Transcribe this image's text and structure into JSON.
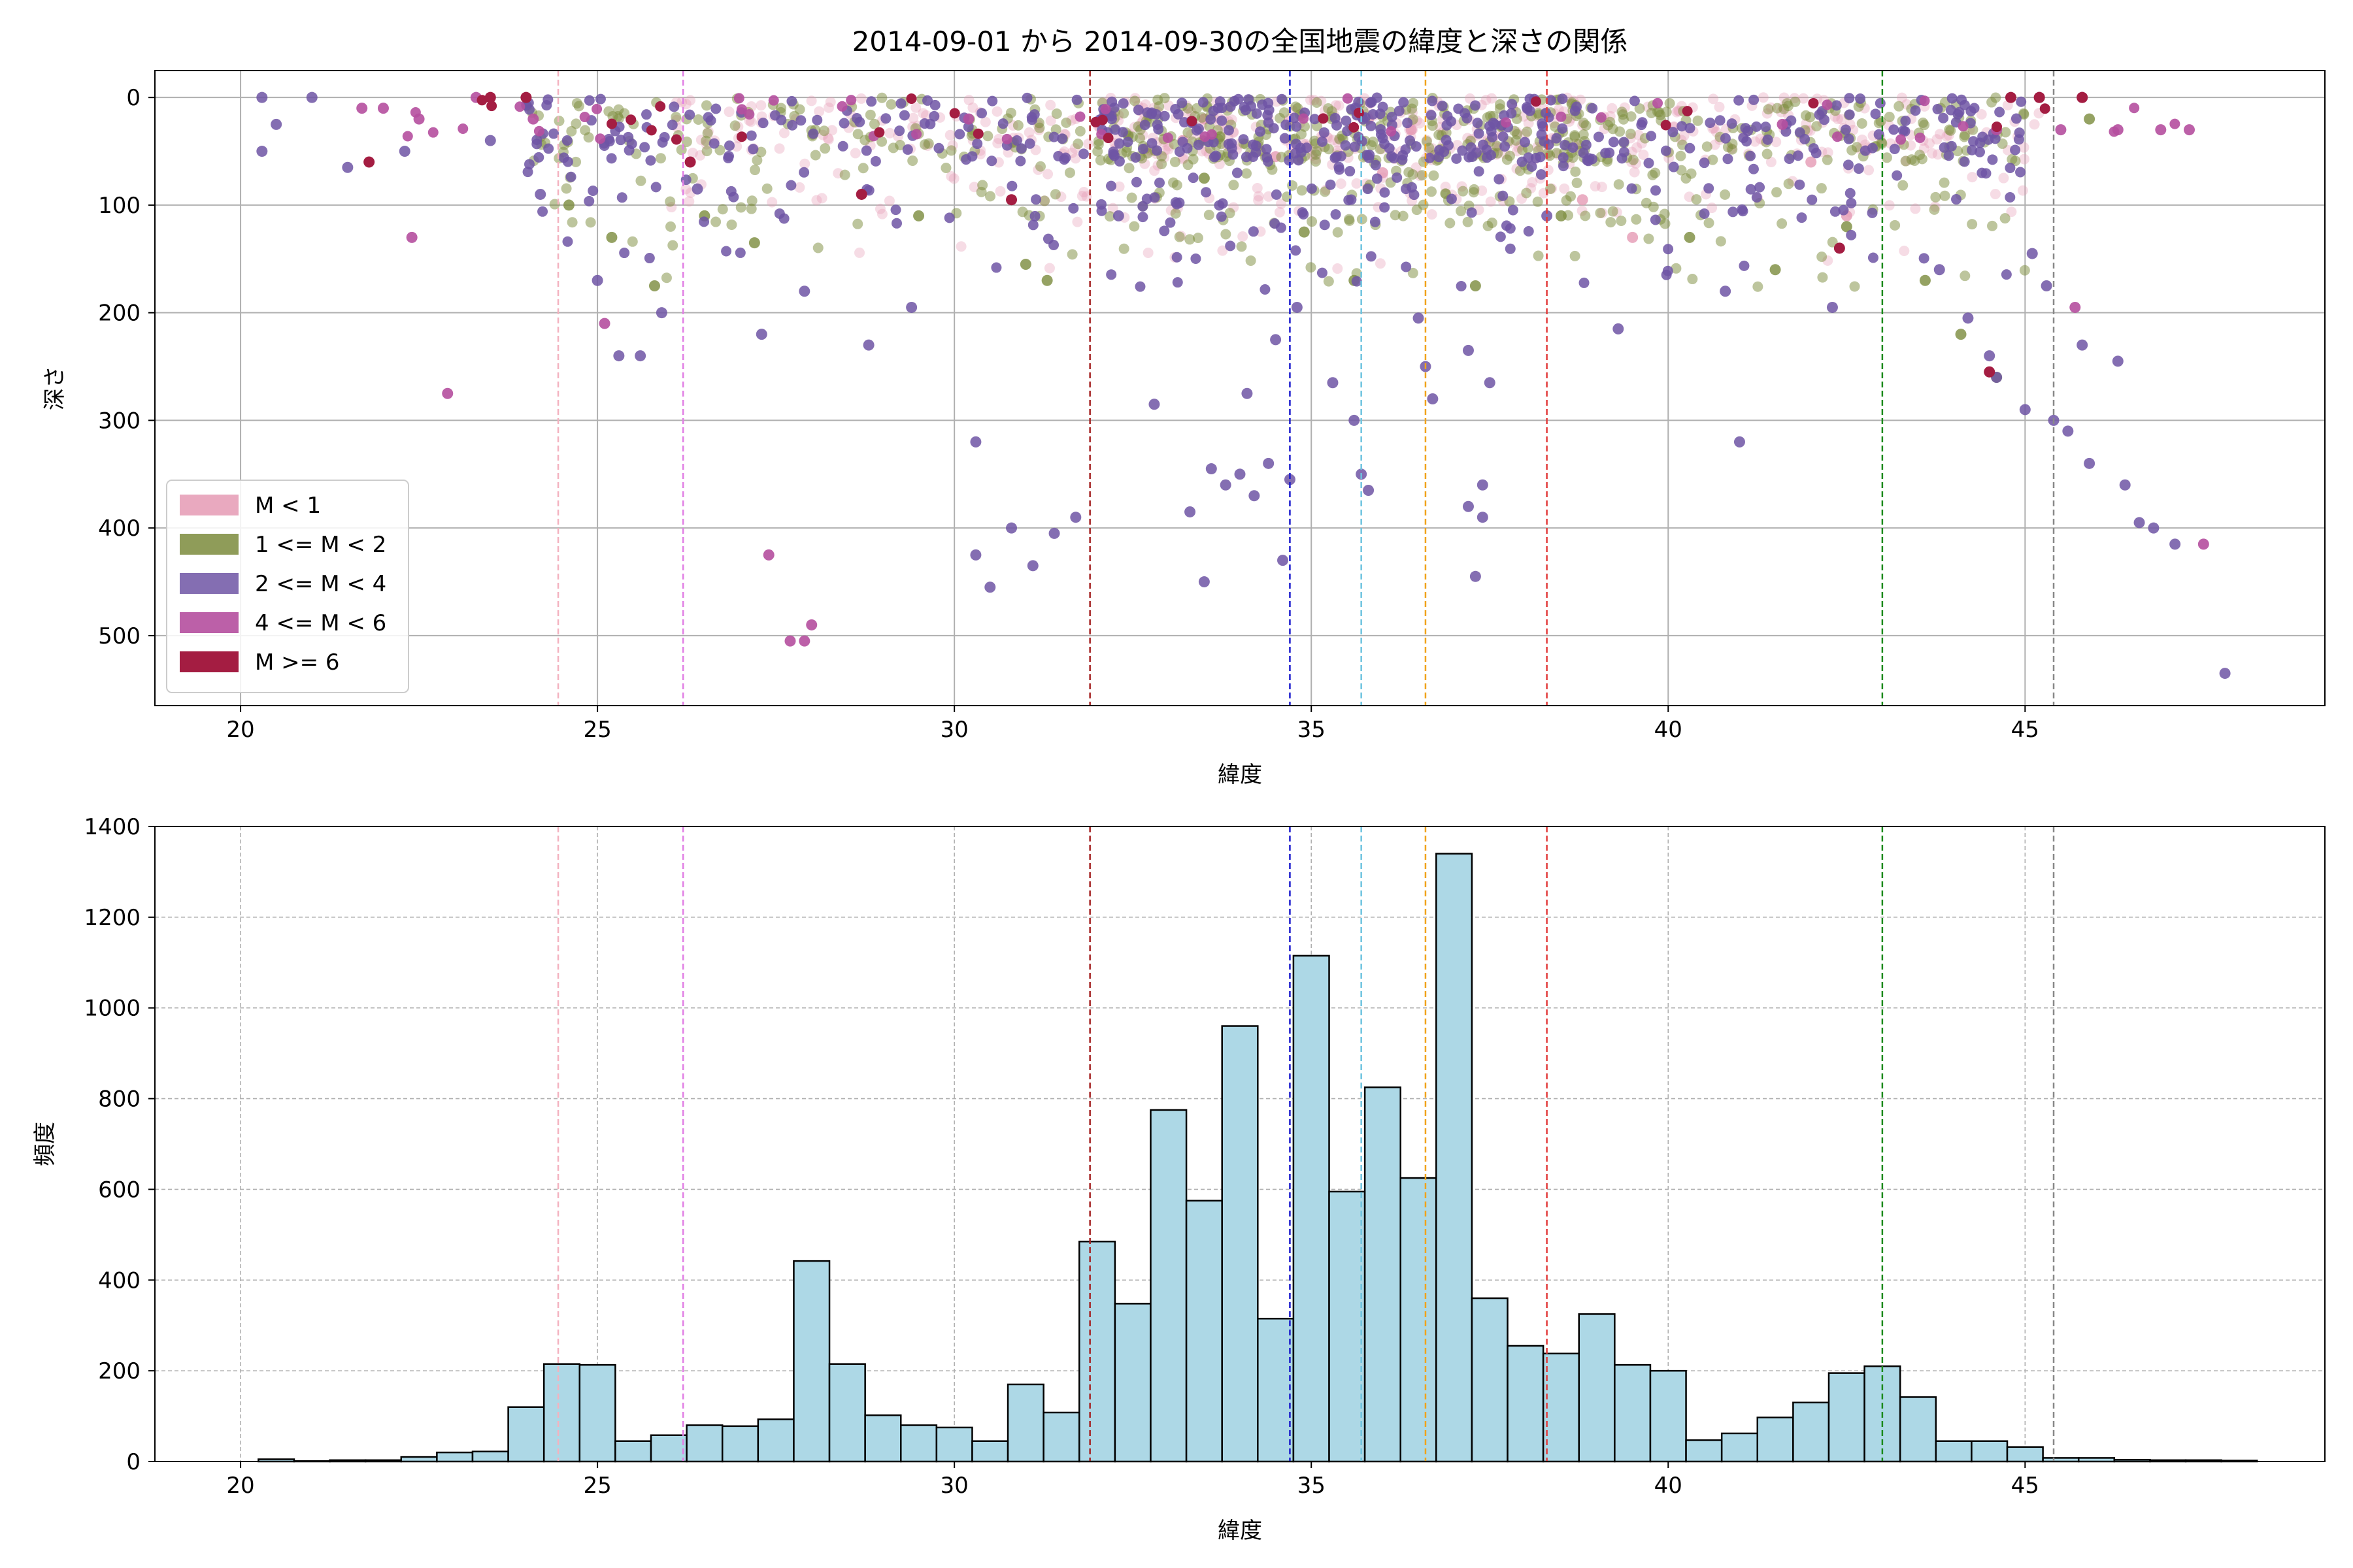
{
  "chart_data": [
    {
      "type": "scatter",
      "title": "2014-09-01 から 2014-09-30の全国地震の緯度と深さの関係",
      "xlabel": "緯度",
      "ylabel": "深さ",
      "xlim": [
        18.8,
        49.2
      ],
      "ylim": [
        565,
        -25
      ],
      "y_inverted": true,
      "x_ticks": [
        20,
        25,
        30,
        35,
        40,
        45
      ],
      "y_ticks": [
        0,
        100,
        200,
        300,
        400,
        500
      ],
      "grid": true,
      "legend_position": "bottom-left",
      "series": [
        {
          "name": "M < 1",
          "color": "#e59ab4",
          "alpha": 0.35,
          "x_range": [
            26.0,
            45.5
          ],
          "points": [
            [
              33.2,
              40
            ],
            [
              34.5,
              55
            ],
            [
              36.0,
              70
            ],
            [
              38.8,
              95
            ],
            [
              39.5,
              130
            ],
            [
              42.5,
              110
            ],
            [
              35.8,
              20
            ],
            [
              33.5,
              20
            ],
            [
              36.4,
              30
            ],
            [
              42.0,
              60
            ]
          ]
        },
        {
          "name": "1 <= M < 2",
          "color": "#7b8b3c",
          "alpha": 0.5,
          "x_range": [
            24.0,
            46.0
          ],
          "points": [
            [
              24.6,
              100
            ],
            [
              25.2,
              130
            ],
            [
              25.8,
              175
            ],
            [
              26.5,
              110
            ],
            [
              27.2,
              135
            ],
            [
              29.5,
              110
            ],
            [
              31.0,
              155
            ],
            [
              31.3,
              170
            ],
            [
              33.5,
              75
            ],
            [
              34.9,
              125
            ],
            [
              35.6,
              170
            ],
            [
              37.3,
              175
            ],
            [
              38.5,
              110
            ],
            [
              40.3,
              130
            ],
            [
              41.5,
              160
            ],
            [
              42.5,
              120
            ],
            [
              43.6,
              170
            ],
            [
              44.1,
              220
            ],
            [
              44.6,
              260
            ],
            [
              45.9,
              20
            ]
          ]
        },
        {
          "name": "2 <= M < 4",
          "color": "#6f55a4",
          "alpha": 0.85,
          "x_range": [
            20.2,
            47.8
          ],
          "points": [
            [
              20.3,
              0
            ],
            [
              20.3,
              50
            ],
            [
              20.5,
              25
            ],
            [
              21.0,
              0
            ],
            [
              21.5,
              65
            ],
            [
              22.3,
              50
            ],
            [
              23.5,
              40
            ],
            [
              24.2,
              90
            ],
            [
              25.0,
              170
            ],
            [
              25.3,
              240
            ],
            [
              25.6,
              240
            ],
            [
              25.9,
              200
            ],
            [
              26.4,
              85
            ],
            [
              27.3,
              220
            ],
            [
              27.9,
              180
            ],
            [
              28.8,
              230
            ],
            [
              29.4,
              195
            ],
            [
              30.3,
              320
            ],
            [
              30.3,
              425
            ],
            [
              30.5,
              455
            ],
            [
              30.8,
              400
            ],
            [
              31.1,
              435
            ],
            [
              31.4,
              405
            ],
            [
              31.7,
              390
            ],
            [
              32.3,
              110
            ],
            [
              32.8,
              285
            ],
            [
              33.3,
              385
            ],
            [
              33.5,
              450
            ],
            [
              33.6,
              345
            ],
            [
              33.8,
              360
            ],
            [
              34.0,
              350
            ],
            [
              34.2,
              370
            ],
            [
              34.4,
              340
            ],
            [
              34.7,
              355
            ],
            [
              34.1,
              275
            ],
            [
              34.5,
              225
            ],
            [
              34.8,
              195
            ],
            [
              34.6,
              430
            ],
            [
              35.3,
              265
            ],
            [
              35.6,
              300
            ],
            [
              35.7,
              350
            ],
            [
              35.8,
              365
            ],
            [
              36.5,
              205
            ],
            [
              36.6,
              250
            ],
            [
              36.7,
              280
            ],
            [
              37.2,
              380
            ],
            [
              37.3,
              445
            ],
            [
              37.4,
              360
            ],
            [
              37.4,
              390
            ],
            [
              37.5,
              265
            ],
            [
              37.2,
              235
            ],
            [
              38.3,
              110
            ],
            [
              39.3,
              215
            ],
            [
              40.8,
              180
            ],
            [
              41.0,
              320
            ],
            [
              42.3,
              195
            ],
            [
              43.8,
              160
            ],
            [
              44.2,
              205
            ],
            [
              44.5,
              240
            ],
            [
              44.6,
              260
            ],
            [
              45.0,
              290
            ],
            [
              45.1,
              145
            ],
            [
              45.3,
              175
            ],
            [
              45.4,
              300
            ],
            [
              45.6,
              310
            ],
            [
              45.8,
              230
            ],
            [
              45.9,
              340
            ],
            [
              46.3,
              245
            ],
            [
              46.4,
              360
            ],
            [
              46.6,
              395
            ],
            [
              46.8,
              400
            ],
            [
              47.1,
              415
            ],
            [
              47.8,
              535
            ]
          ]
        },
        {
          "name": "4 <= M < 6",
          "color": "#b54f9e",
          "alpha": 0.9,
          "x_range": [
            21.7,
            47.5
          ],
          "points": [
            [
              21.7,
              10
            ],
            [
              22.0,
              10
            ],
            [
              22.4,
              130
            ],
            [
              22.5,
              20
            ],
            [
              22.9,
              275
            ],
            [
              23.3,
              0
            ],
            [
              24.1,
              20
            ],
            [
              25.1,
              210
            ],
            [
              27.4,
              425
            ],
            [
              27.7,
              505
            ],
            [
              27.9,
              505
            ],
            [
              28.0,
              490
            ],
            [
              30.2,
              20
            ],
            [
              41.6,
              25
            ],
            [
              44.6,
              30
            ],
            [
              45.2,
              0
            ],
            [
              45.5,
              30
            ],
            [
              45.7,
              195
            ],
            [
              45.8,
              0
            ],
            [
              46.3,
              30
            ],
            [
              46.9,
              30
            ],
            [
              47.3,
              30
            ],
            [
              47.5,
              415
            ]
          ]
        },
        {
          "name": "M >= 6",
          "color": "#a41d42",
          "alpha": 1.0,
          "x_range": [
            21.8,
            45.8
          ],
          "points": [
            [
              21.8,
              60
            ],
            [
              23.5,
              0
            ],
            [
              24.0,
              0
            ],
            [
              26.3,
              60
            ],
            [
              28.7,
              90
            ],
            [
              30.8,
              95
            ],
            [
              42.4,
              140
            ],
            [
              44.5,
              255
            ],
            [
              44.8,
              0
            ],
            [
              45.2,
              0
            ],
            [
              45.8,
              0
            ]
          ]
        }
      ],
      "vlines": [
        {
          "x": 24.45,
          "color": "#f4b2bf"
        },
        {
          "x": 26.2,
          "color": "#e17fe4"
        },
        {
          "x": 31.9,
          "color": "#a52424"
        },
        {
          "x": 34.7,
          "color": "#1a1acc"
        },
        {
          "x": 35.7,
          "color": "#6ec3df"
        },
        {
          "x": 36.6,
          "color": "#f0a31b"
        },
        {
          "x": 38.3,
          "color": "#e23c3c"
        },
        {
          "x": 43.0,
          "color": "#1b8a1b"
        },
        {
          "x": 45.4,
          "color": "#888888"
        }
      ]
    },
    {
      "type": "bar",
      "subtype": "histogram",
      "xlabel": "緯度",
      "ylabel": "頻度",
      "xlim": [
        18.8,
        49.2
      ],
      "ylim": [
        0,
        1400
      ],
      "x_ticks": [
        20,
        25,
        30,
        35,
        40,
        45
      ],
      "y_ticks": [
        0,
        200,
        400,
        600,
        800,
        1000,
        1200,
        1400
      ],
      "grid": true,
      "bar_color": "#add8e6",
      "bin_edges_start": 20.25,
      "bin_width": 0.5,
      "values": [
        5,
        1,
        3,
        3,
        10,
        20,
        22,
        120,
        215,
        213,
        45,
        58,
        80,
        78,
        93,
        442,
        215,
        102,
        80,
        75,
        45,
        170,
        108,
        485,
        348,
        775,
        575,
        960,
        315,
        1115,
        595,
        825,
        625,
        1340,
        360,
        255,
        238,
        325,
        213,
        200,
        47,
        62,
        97,
        130,
        195,
        210,
        142,
        45,
        45,
        32,
        8,
        8,
        4,
        3,
        3,
        2
      ],
      "vlines": [
        {
          "x": 24.45,
          "color": "#f4b2bf"
        },
        {
          "x": 26.2,
          "color": "#e17fe4"
        },
        {
          "x": 31.9,
          "color": "#a52424"
        },
        {
          "x": 34.7,
          "color": "#1a1acc"
        },
        {
          "x": 35.7,
          "color": "#6ec3df"
        },
        {
          "x": 36.6,
          "color": "#f0a31b"
        },
        {
          "x": 38.3,
          "color": "#e23c3c"
        },
        {
          "x": 43.0,
          "color": "#1b8a1b"
        },
        {
          "x": 45.4,
          "color": "#888888"
        }
      ]
    }
  ]
}
